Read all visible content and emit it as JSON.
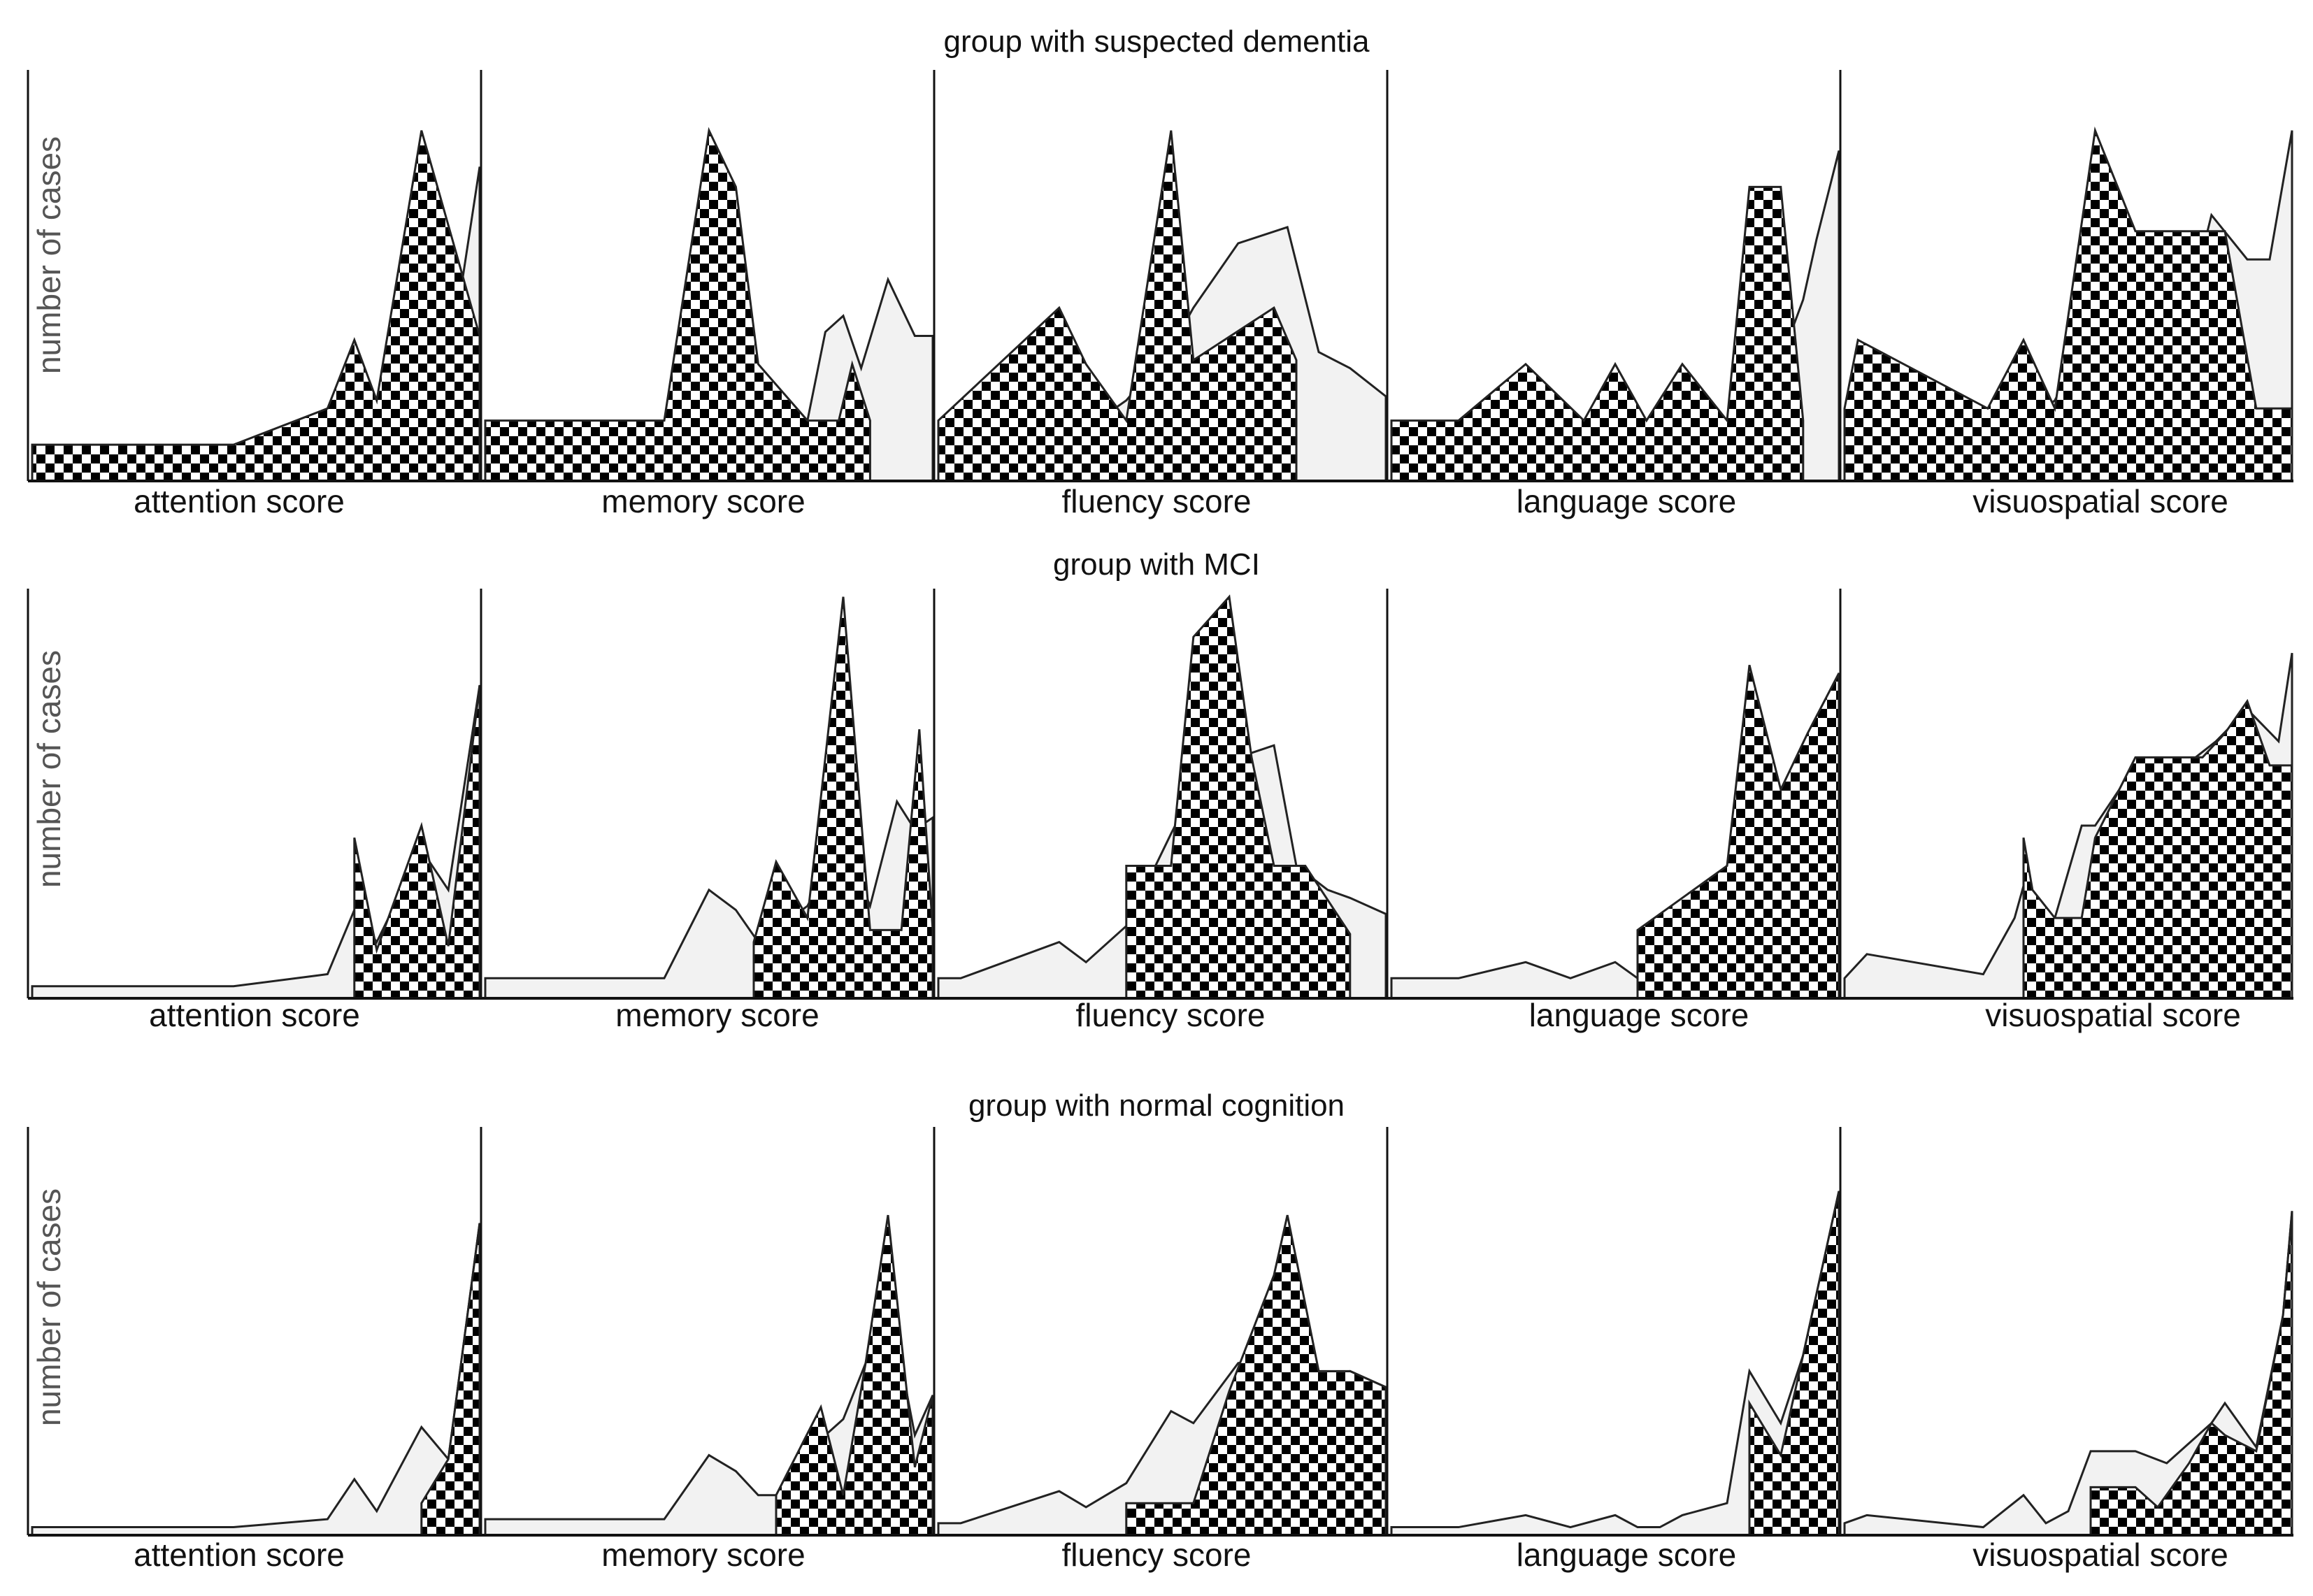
{
  "chart_data": {
    "type": "area",
    "ylabel": "number of cases",
    "xlabels": [
      "attention score",
      "memory score",
      "fluency score",
      "language score",
      "visuospatial score"
    ],
    "colors": {
      "checker_dark": "#000000",
      "checker_light": "#ffffff",
      "light_fill": "#f2f2f2",
      "stroke": "#222222",
      "frame": "#111111"
    },
    "grid": false,
    "legend": "none",
    "series_styles": {
      "checker": "checkered fill",
      "light": "light grey fill"
    },
    "ylim": [
      0,
      100
    ],
    "groups": [
      {
        "title": "group with suspected dementia",
        "panels": [
          {
            "xlabel": "attention score",
            "checker": {
              "x": [
                0.0,
                0.45,
                0.66,
                0.72,
                0.77,
                0.87,
                1.0
              ],
              "y": [
                9,
                9,
                18,
                35,
                20,
                87,
                36
              ]
            },
            "light": {
              "x": [
                0.0,
                0.45,
                0.66,
                0.72,
                0.77,
                0.87,
                0.93,
                1.0
              ],
              "y": [
                3,
                4,
                10,
                22,
                14,
                37,
                27,
                78
              ]
            }
          },
          {
            "xlabel": "memory score",
            "checker": {
              "x": [
                0.0,
                0.4,
                0.5,
                0.56,
                0.61,
                0.72,
                0.79,
                0.82,
                0.86
              ],
              "y": [
                15,
                15,
                87,
                73,
                29,
                15,
                15,
                29,
                15
              ]
            },
            "light": {
              "x": [
                0.0,
                0.4,
                0.5,
                0.56,
                0.61,
                0.72,
                0.76,
                0.8,
                0.84,
                0.9,
                0.96,
                1.0
              ],
              "y": [
                4,
                4,
                30,
                44,
                20,
                15,
                37,
                41,
                28,
                50,
                36,
                36
              ]
            }
          },
          {
            "xlabel": "fluency score",
            "checker": {
              "x": [
                0.0,
                0.27,
                0.33,
                0.42,
                0.52,
                0.57,
                0.75,
                0.8
              ],
              "y": [
                15,
                43,
                29,
                15,
                87,
                30,
                43,
                30
              ]
            },
            "light": {
              "x": [
                0.0,
                0.27,
                0.33,
                0.42,
                0.52,
                0.57,
                0.67,
                0.78,
                0.85,
                0.92,
                1.0
              ],
              "y": [
                4,
                15,
                13,
                20,
                33,
                43,
                59,
                63,
                32,
                28,
                21
              ]
            }
          },
          {
            "xlabel": "language score",
            "checker": {
              "x": [
                0.0,
                0.15,
                0.3,
                0.43,
                0.5,
                0.57,
                0.65,
                0.75,
                0.8,
                0.87,
                0.92
              ],
              "y": [
                15,
                15,
                29,
                15,
                29,
                15,
                29,
                15,
                73,
                73,
                15
              ]
            },
            "light": {
              "x": [
                0.0,
                0.15,
                0.3,
                0.43,
                0.57,
                0.75,
                0.87,
                0.92,
                0.95,
                1.0
              ],
              "y": [
                4,
                4,
                8,
                6,
                7,
                5,
                30,
                45,
                60,
                82
              ]
            }
          },
          {
            "xlabel": "visuospatial score",
            "checker": {
              "x": [
                0.0,
                0.03,
                0.32,
                0.4,
                0.47,
                0.56,
                0.65,
                0.78,
                0.85,
                0.92,
                1.0
              ],
              "y": [
                18,
                35,
                18,
                35,
                18,
                87,
                62,
                62,
                62,
                18,
                18
              ]
            },
            "light": {
              "x": [
                0.0,
                0.03,
                0.32,
                0.4,
                0.47,
                0.56,
                0.65,
                0.78,
                0.82,
                0.9,
                0.95,
                1.0
              ],
              "y": [
                6,
                10,
                8,
                14,
                20,
                40,
                45,
                48,
                66,
                55,
                55,
                87
              ]
            }
          }
        ]
      },
      {
        "title": "group with MCI",
        "panels": [
          {
            "xlabel": "attention score",
            "checker": {
              "x": [
                0.72,
                0.77,
                0.87,
                0.93,
                1.0
              ],
              "y": [
                40,
                12,
                43,
                13,
                78
              ]
            },
            "light": {
              "x": [
                0.0,
                0.45,
                0.66,
                0.72,
                0.77,
                0.87,
                0.93,
                1.0
              ],
              "y": [
                3,
                3,
                6,
                22,
                14,
                37,
                27,
                78
              ]
            }
          },
          {
            "xlabel": "memory score",
            "checker": {
              "x": [
                0.6,
                0.65,
                0.72,
                0.8,
                0.86,
                0.93,
                0.97,
                1.0
              ],
              "y": [
                14,
                34,
                20,
                100,
                17,
                17,
                67,
                17
              ]
            },
            "light": {
              "x": [
                0.0,
                0.4,
                0.5,
                0.56,
                0.61,
                0.72,
                0.8,
                0.86,
                0.92,
                0.96,
                1.0
              ],
              "y": [
                5,
                5,
                27,
                22,
                14,
                23,
                40,
                23,
                49,
                42,
                45
              ]
            }
          },
          {
            "xlabel": "fluency score",
            "checker": {
              "x": [
                0.42,
                0.52,
                0.57,
                0.65,
                0.7,
                0.75,
                0.82,
                0.92
              ],
              "y": [
                33,
                33,
                90,
                100,
                60,
                33,
                33,
                16
              ]
            },
            "light": {
              "x": [
                0.0,
                0.05,
                0.27,
                0.33,
                0.42,
                0.52,
                0.57,
                0.67,
                0.75,
                0.8,
                0.87,
                0.92,
                1.0
              ],
              "y": [
                5,
                5,
                14,
                9,
                18,
                41,
                52,
                60,
                63,
                33,
                27,
                25,
                21
              ]
            }
          },
          {
            "xlabel": "language score",
            "checker": {
              "x": [
                0.55,
                0.75,
                0.8,
                0.87,
                0.93,
                1.0
              ],
              "y": [
                17,
                33,
                83,
                52,
                66,
                81
              ]
            },
            "light": {
              "x": [
                0.0,
                0.15,
                0.3,
                0.4,
                0.5,
                0.55,
                0.75,
                0.87,
                1.0
              ],
              "y": [
                5,
                5,
                9,
                5,
                9,
                5,
                8,
                40,
                70
              ]
            }
          },
          {
            "xlabel": "visuospatial score",
            "checker": {
              "x": [
                0.4,
                0.42,
                0.47,
                0.53,
                0.56,
                0.65,
                0.75,
                0.8,
                0.85,
                0.9,
                0.95,
                1.0
              ],
              "y": [
                40,
                27,
                20,
                20,
                40,
                60,
                60,
                60,
                66,
                74,
                58,
                58
              ]
            },
            "light": {
              "x": [
                0.0,
                0.05,
                0.31,
                0.38,
                0.4,
                0.47,
                0.53,
                0.56,
                0.65,
                0.75,
                0.83,
                0.9,
                0.97,
                1.0
              ],
              "y": [
                5,
                11,
                6,
                20,
                28,
                20,
                43,
                43,
                58,
                57,
                64,
                72,
                64,
                86
              ]
            }
          }
        ]
      },
      {
        "title": "group with normal cognition",
        "panels": [
          {
            "xlabel": "attention score",
            "checker": {
              "x": [
                0.87,
                0.93,
                1.0
              ],
              "y": [
                8,
                19,
                78
              ]
            },
            "light": {
              "x": [
                0.0,
                0.45,
                0.66,
                0.72,
                0.77,
                0.87,
                0.93,
                1.0
              ],
              "y": [
                2,
                2,
                4,
                14,
                6,
                27,
                19,
                78
              ]
            }
          },
          {
            "xlabel": "memory score",
            "checker": {
              "x": [
                0.65,
                0.75,
                0.8,
                0.85,
                0.9,
                0.96,
                1.0
              ],
              "y": [
                10,
                32,
                10,
                43,
                80,
                17,
                35
              ]
            },
            "light": {
              "x": [
                0.0,
                0.4,
                0.5,
                0.56,
                0.61,
                0.65,
                0.75,
                0.8,
                0.85,
                0.9,
                0.96,
                1.0
              ],
              "y": [
                4,
                4,
                20,
                16,
                10,
                10,
                24,
                29,
                43,
                60,
                25,
                35
              ]
            }
          },
          {
            "xlabel": "fluency score",
            "checker": {
              "x": [
                0.42,
                0.57,
                0.65,
                0.75,
                0.78,
                0.85,
                0.92,
                1.0
              ],
              "y": [
                8,
                8,
                36,
                65,
                80,
                41,
                41,
                37
              ]
            },
            "light": {
              "x": [
                0.0,
                0.05,
                0.27,
                0.33,
                0.42,
                0.52,
                0.57,
                0.67,
                0.75,
                0.8,
                0.87,
                0.92,
                1.0
              ],
              "y": [
                3,
                3,
                11,
                7,
                13,
                31,
                28,
                43,
                45,
                33,
                40,
                41,
                37
              ]
            }
          },
          {
            "xlabel": "language score",
            "checker": {
              "x": [
                0.8,
                0.87,
                0.92,
                1.0
              ],
              "y": [
                33,
                20,
                45,
                86
              ]
            },
            "light": {
              "x": [
                0.0,
                0.15,
                0.3,
                0.4,
                0.5,
                0.55,
                0.6,
                0.65,
                0.75,
                0.8,
                0.87,
                0.92,
                1.0
              ],
              "y": [
                2,
                2,
                5,
                2,
                5,
                2,
                2,
                5,
                8,
                41,
                28,
                45,
                86
              ]
            }
          },
          {
            "xlabel": "visuospatial score",
            "checker": {
              "x": [
                0.55,
                0.65,
                0.7,
                0.77,
                0.82,
                0.85,
                0.92,
                0.98,
                1.0
              ],
              "y": [
                12,
                12,
                7,
                18,
                28,
                25,
                21,
                55,
                81
              ]
            },
            "light": {
              "x": [
                0.0,
                0.05,
                0.31,
                0.4,
                0.45,
                0.5,
                0.55,
                0.65,
                0.72,
                0.82,
                0.85,
                0.92,
                0.98,
                1.0
              ],
              "y": [
                3,
                5,
                2,
                10,
                3,
                6,
                21,
                21,
                18,
                28,
                33,
                22,
                55,
                81
              ]
            }
          }
        ]
      }
    ]
  }
}
